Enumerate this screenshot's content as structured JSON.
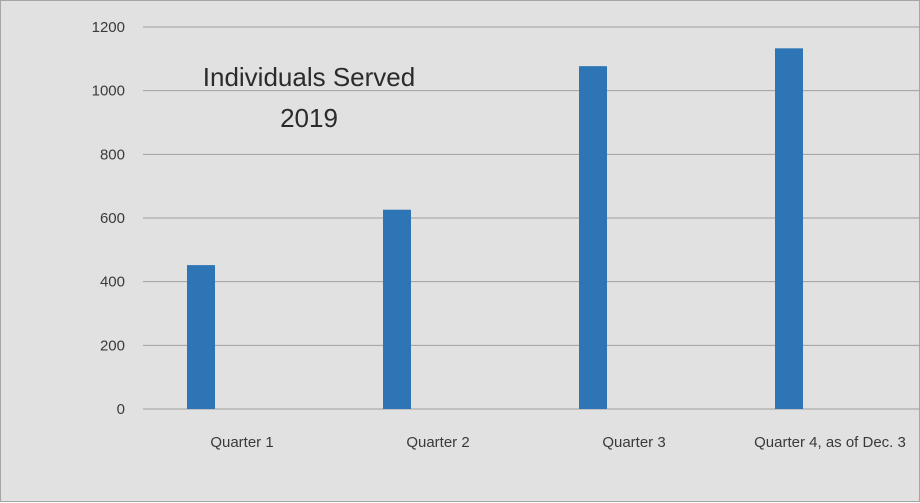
{
  "chart_data": {
    "type": "bar",
    "title": "Individuals Served",
    "subtitle": "2019",
    "categories": [
      "Quarter 1",
      "Quarter 2",
      "Quarter 3",
      "Quarter 4, as of Dec. 3"
    ],
    "values": [
      452,
      626,
      1077,
      1133
    ],
    "ylim": [
      0,
      1200
    ],
    "yticks": [
      0,
      200,
      400,
      600,
      800,
      1000,
      1200
    ],
    "grid": true,
    "legend": "none",
    "colors": {
      "bar": "#2e75b6",
      "grid": "#a0a0a0",
      "background": "#e1e1e1"
    }
  }
}
